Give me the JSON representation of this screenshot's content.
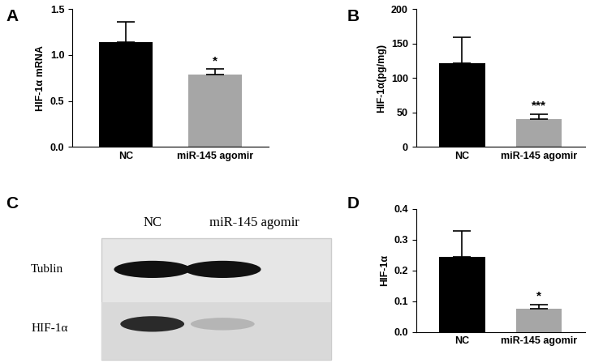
{
  "chart_data": [
    {
      "type": "bar",
      "panel": "A",
      "ylabel": "HIF-1α mRNA",
      "categories": [
        "NC",
        "miR-145 agomir"
      ],
      "values": [
        1.14,
        0.79
      ],
      "errors": [
        0.22,
        0.06
      ],
      "colors": [
        "#000000",
        "#a6a6a6"
      ],
      "annotations": [
        {
          "category": "miR-145 agomir",
          "text": "*"
        }
      ],
      "ylim": [
        0,
        1.5
      ],
      "yticks": [
        {
          "value": 0,
          "label": "0.0"
        },
        {
          "value": 0.5,
          "label": "0.5"
        },
        {
          "value": 1.0,
          "label": "1.0"
        },
        {
          "value": 1.5,
          "label": "1.5"
        }
      ]
    },
    {
      "type": "bar",
      "panel": "B",
      "ylabel": "HIF-1α(pg/mg)",
      "categories": [
        "NC",
        "miR-145 agomir"
      ],
      "values": [
        121,
        41
      ],
      "errors": [
        38,
        7
      ],
      "colors": [
        "#000000",
        "#a6a6a6"
      ],
      "annotations": [
        {
          "category": "miR-145 agomir",
          "text": "***"
        }
      ],
      "ylim": [
        0,
        200
      ],
      "yticks": [
        0,
        50,
        100,
        150,
        200
      ]
    },
    {
      "type": "bar",
      "panel": "D",
      "ylabel": "HIF-1α",
      "categories": [
        "NC",
        "miR-145 agomir"
      ],
      "values": [
        0.245,
        0.076
      ],
      "errors": [
        0.083,
        0.014
      ],
      "colors": [
        "#000000",
        "#a6a6a6"
      ],
      "annotations": [
        {
          "category": "miR-145 agomir",
          "text": "*"
        }
      ],
      "ylim": [
        0,
        0.4
      ],
      "yticks": [
        {
          "value": 0,
          "label": "0.0"
        },
        {
          "value": 0.1,
          "label": "0.1"
        },
        {
          "value": 0.2,
          "label": "0.2"
        },
        {
          "value": 0.3,
          "label": "0.3"
        },
        {
          "value": 0.4,
          "label": "0.4"
        }
      ]
    }
  ],
  "blot": {
    "panel": "C",
    "lanes": [
      "NC",
      "miR-145 agomir"
    ],
    "rows": [
      "Tublin",
      "HIF-1α"
    ]
  }
}
